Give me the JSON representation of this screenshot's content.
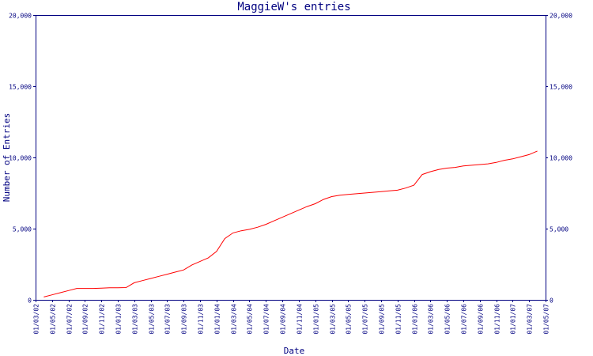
{
  "chart_data": {
    "type": "line",
    "title": "MaggieW's entries",
    "xlabel": "Date",
    "ylabel": "Number of Entries",
    "ylim": [
      0,
      20000
    ],
    "y_ticks": [
      {
        "value": 0,
        "label": "0"
      },
      {
        "value": 5000,
        "label": "5,000"
      },
      {
        "value": 10000,
        "label": "10,000"
      },
      {
        "value": 15000,
        "label": "15,000"
      },
      {
        "value": 20000,
        "label": "20,000"
      }
    ],
    "x_ticks": [
      "01/03/02",
      "01/05/02",
      "01/07/02",
      "01/09/02",
      "01/11/02",
      "01/01/03",
      "01/03/03",
      "01/05/03",
      "01/07/03",
      "01/09/03",
      "01/11/03",
      "01/01/04",
      "01/03/04",
      "01/05/04",
      "01/07/04",
      "01/09/04",
      "01/11/04",
      "01/01/05",
      "01/03/05",
      "01/05/05",
      "01/07/05",
      "01/09/05",
      "01/11/05",
      "01/01/06",
      "01/03/06",
      "01/05/06",
      "01/07/06",
      "01/09/06",
      "01/11/06",
      "01/01/07",
      "01/03/07",
      "01/05/07"
    ],
    "grid": false,
    "series": [
      {
        "color": "#ff0000",
        "points": [
          {
            "x": "2002-04",
            "y": 200
          },
          {
            "x": "2002-05",
            "y": 350
          },
          {
            "x": "2002-06",
            "y": 500
          },
          {
            "x": "2002-07",
            "y": 650
          },
          {
            "x": "2002-08",
            "y": 800
          },
          {
            "x": "2002-09",
            "y": 800
          },
          {
            "x": "2002-10",
            "y": 800
          },
          {
            "x": "2002-11",
            "y": 820
          },
          {
            "x": "2002-12",
            "y": 850
          },
          {
            "x": "2003-01",
            "y": 850
          },
          {
            "x": "2003-02",
            "y": 860
          },
          {
            "x": "2003-03",
            "y": 1200
          },
          {
            "x": "2003-04",
            "y": 1350
          },
          {
            "x": "2003-05",
            "y": 1500
          },
          {
            "x": "2003-06",
            "y": 1650
          },
          {
            "x": "2003-07",
            "y": 1800
          },
          {
            "x": "2003-08",
            "y": 1950
          },
          {
            "x": "2003-09",
            "y": 2100
          },
          {
            "x": "2003-10",
            "y": 2450
          },
          {
            "x": "2003-11",
            "y": 2700
          },
          {
            "x": "2003-12",
            "y": 2950
          },
          {
            "x": "2004-01",
            "y": 3400
          },
          {
            "x": "2004-02",
            "y": 4300
          },
          {
            "x": "2004-03",
            "y": 4700
          },
          {
            "x": "2004-04",
            "y": 4850
          },
          {
            "x": "2004-05",
            "y": 4950
          },
          {
            "x": "2004-06",
            "y": 5100
          },
          {
            "x": "2004-07",
            "y": 5300
          },
          {
            "x": "2004-08",
            "y": 5550
          },
          {
            "x": "2004-09",
            "y": 5800
          },
          {
            "x": "2004-10",
            "y": 6050
          },
          {
            "x": "2004-11",
            "y": 6300
          },
          {
            "x": "2004-12",
            "y": 6550
          },
          {
            "x": "2005-01",
            "y": 6750
          },
          {
            "x": "2005-02",
            "y": 7050
          },
          {
            "x": "2005-03",
            "y": 7250
          },
          {
            "x": "2005-04",
            "y": 7350
          },
          {
            "x": "2005-05",
            "y": 7400
          },
          {
            "x": "2005-06",
            "y": 7450
          },
          {
            "x": "2005-07",
            "y": 7500
          },
          {
            "x": "2005-08",
            "y": 7550
          },
          {
            "x": "2005-09",
            "y": 7600
          },
          {
            "x": "2005-10",
            "y": 7650
          },
          {
            "x": "2005-11",
            "y": 7700
          },
          {
            "x": "2005-12",
            "y": 7850
          },
          {
            "x": "2006-01",
            "y": 8050
          },
          {
            "x": "2006-02",
            "y": 8800
          },
          {
            "x": "2006-03",
            "y": 9000
          },
          {
            "x": "2006-04",
            "y": 9150
          },
          {
            "x": "2006-05",
            "y": 9250
          },
          {
            "x": "2006-06",
            "y": 9300
          },
          {
            "x": "2006-07",
            "y": 9400
          },
          {
            "x": "2006-08",
            "y": 9450
          },
          {
            "x": "2006-09",
            "y": 9500
          },
          {
            "x": "2006-10",
            "y": 9550
          },
          {
            "x": "2006-11",
            "y": 9650
          },
          {
            "x": "2006-12",
            "y": 9800
          },
          {
            "x": "2007-01",
            "y": 9900
          },
          {
            "x": "2007-02",
            "y": 10050
          },
          {
            "x": "2007-03",
            "y": 10200
          },
          {
            "x": "2007-04",
            "y": 10450
          }
        ]
      }
    ],
    "xlim": [
      "2002-03",
      "2007-05"
    ]
  }
}
